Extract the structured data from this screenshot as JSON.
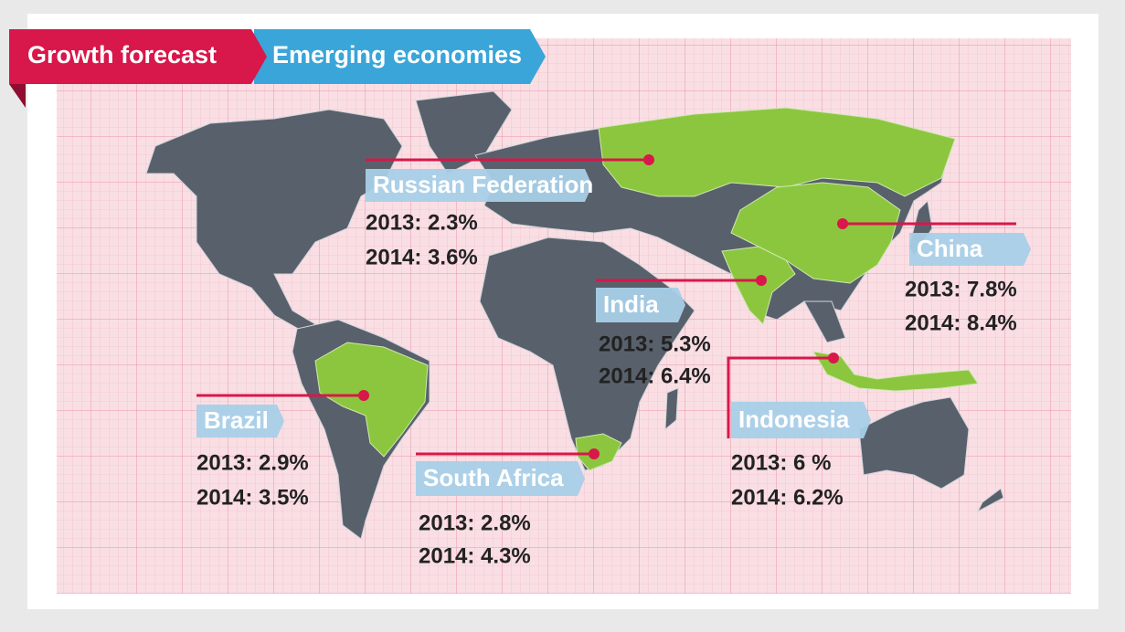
{
  "header": {
    "title": "Growth forecast",
    "subtitle": "Emerging economies"
  },
  "countries": [
    {
      "name": "Russian Federation",
      "lines": [
        "2013: 2.3%",
        "2014: 3.6%"
      ]
    },
    {
      "name": "China",
      "lines": [
        "2013: 7.8%",
        "2014: 8.4%"
      ]
    },
    {
      "name": "India",
      "lines": [
        "2013: 5.3%",
        "2014: 6.4%"
      ]
    },
    {
      "name": "Indonesia",
      "lines": [
        "2013: 6 %",
        "2014: 6.2%"
      ]
    },
    {
      "name": "Brazil",
      "lines": [
        "2013: 2.9%",
        "2014: 3.5%"
      ]
    },
    {
      "name": "South Africa",
      "lines": [
        "2013: 2.8%",
        "2014: 4.3%"
      ]
    }
  ]
}
